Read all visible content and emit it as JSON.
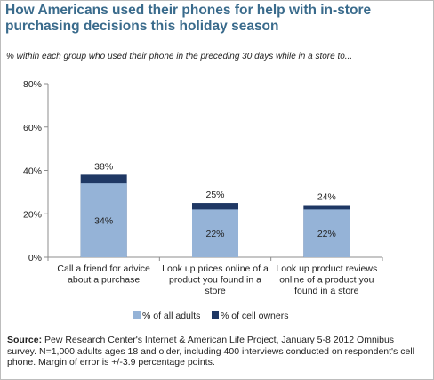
{
  "header": {
    "title_line1": "How Americans used their phones for help with in-store",
    "title_line2": "purchasing decisions this holiday season",
    "subtitle": "% within each group who used their phone in the preceding 30 days while in a store to..."
  },
  "source": {
    "label": "Source:",
    "text": " Pew Research Center's Internet & American Life Project, January 5-8 2012 Omnibus survey. N=1,000 adults ages 18 and older, including 400 interviews conducted on respondent's cell phone. Margin of error is +/-3.9 percentage points."
  },
  "colors": {
    "all_adults": "#95b3d7",
    "cell_owners": "#1f3864",
    "title": "#3a6b8c"
  },
  "chart_data": {
    "type": "bar",
    "stacked_overlay": true,
    "categories": [
      [
        "Call a friend for advice",
        "about a purchase"
      ],
      [
        "Look up prices online of a",
        "product you found in a",
        "store"
      ],
      [
        "Look up product reviews",
        "online of a product you",
        "found in a store"
      ]
    ],
    "series": [
      {
        "name": "% of all adults",
        "values": [
          34,
          22,
          22
        ],
        "labels": [
          "34%",
          "22%",
          "22%"
        ]
      },
      {
        "name": "% of cell owners",
        "values": [
          38,
          25,
          24
        ],
        "labels": [
          "38%",
          "25%",
          "24%"
        ]
      }
    ],
    "y_ticks": [
      "0%",
      "20%",
      "40%",
      "60%",
      "80%"
    ],
    "ylim": [
      0,
      80
    ],
    "grid": false,
    "legend_position": "bottom"
  }
}
